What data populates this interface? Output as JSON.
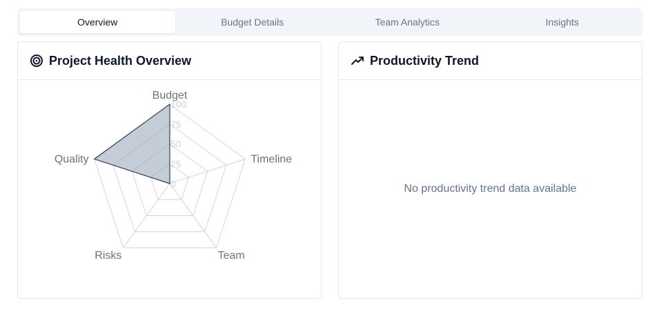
{
  "tabs": [
    {
      "label": "Overview",
      "active": true
    },
    {
      "label": "Budget Details",
      "active": false
    },
    {
      "label": "Team Analytics",
      "active": false
    },
    {
      "label": "Insights",
      "active": false
    }
  ],
  "health_card": {
    "title": "Project Health Overview",
    "icon": "target-icon"
  },
  "trend_card": {
    "title": "Productivity Trend",
    "icon": "trending-up-icon",
    "empty_message": "No productivity trend data available"
  },
  "chart_data": {
    "type": "radar",
    "axes": [
      "Budget",
      "Timeline",
      "Team",
      "Risks",
      "Quality"
    ],
    "values": [
      100,
      0,
      0,
      0,
      100
    ],
    "rlim": [
      0,
      100
    ],
    "ticks": [
      "0",
      "25",
      "50",
      "75",
      "100"
    ],
    "grid": true,
    "colors": {
      "fill": "#94a3b8",
      "stroke": "#334155",
      "grid": "#d4d4d4"
    }
  }
}
